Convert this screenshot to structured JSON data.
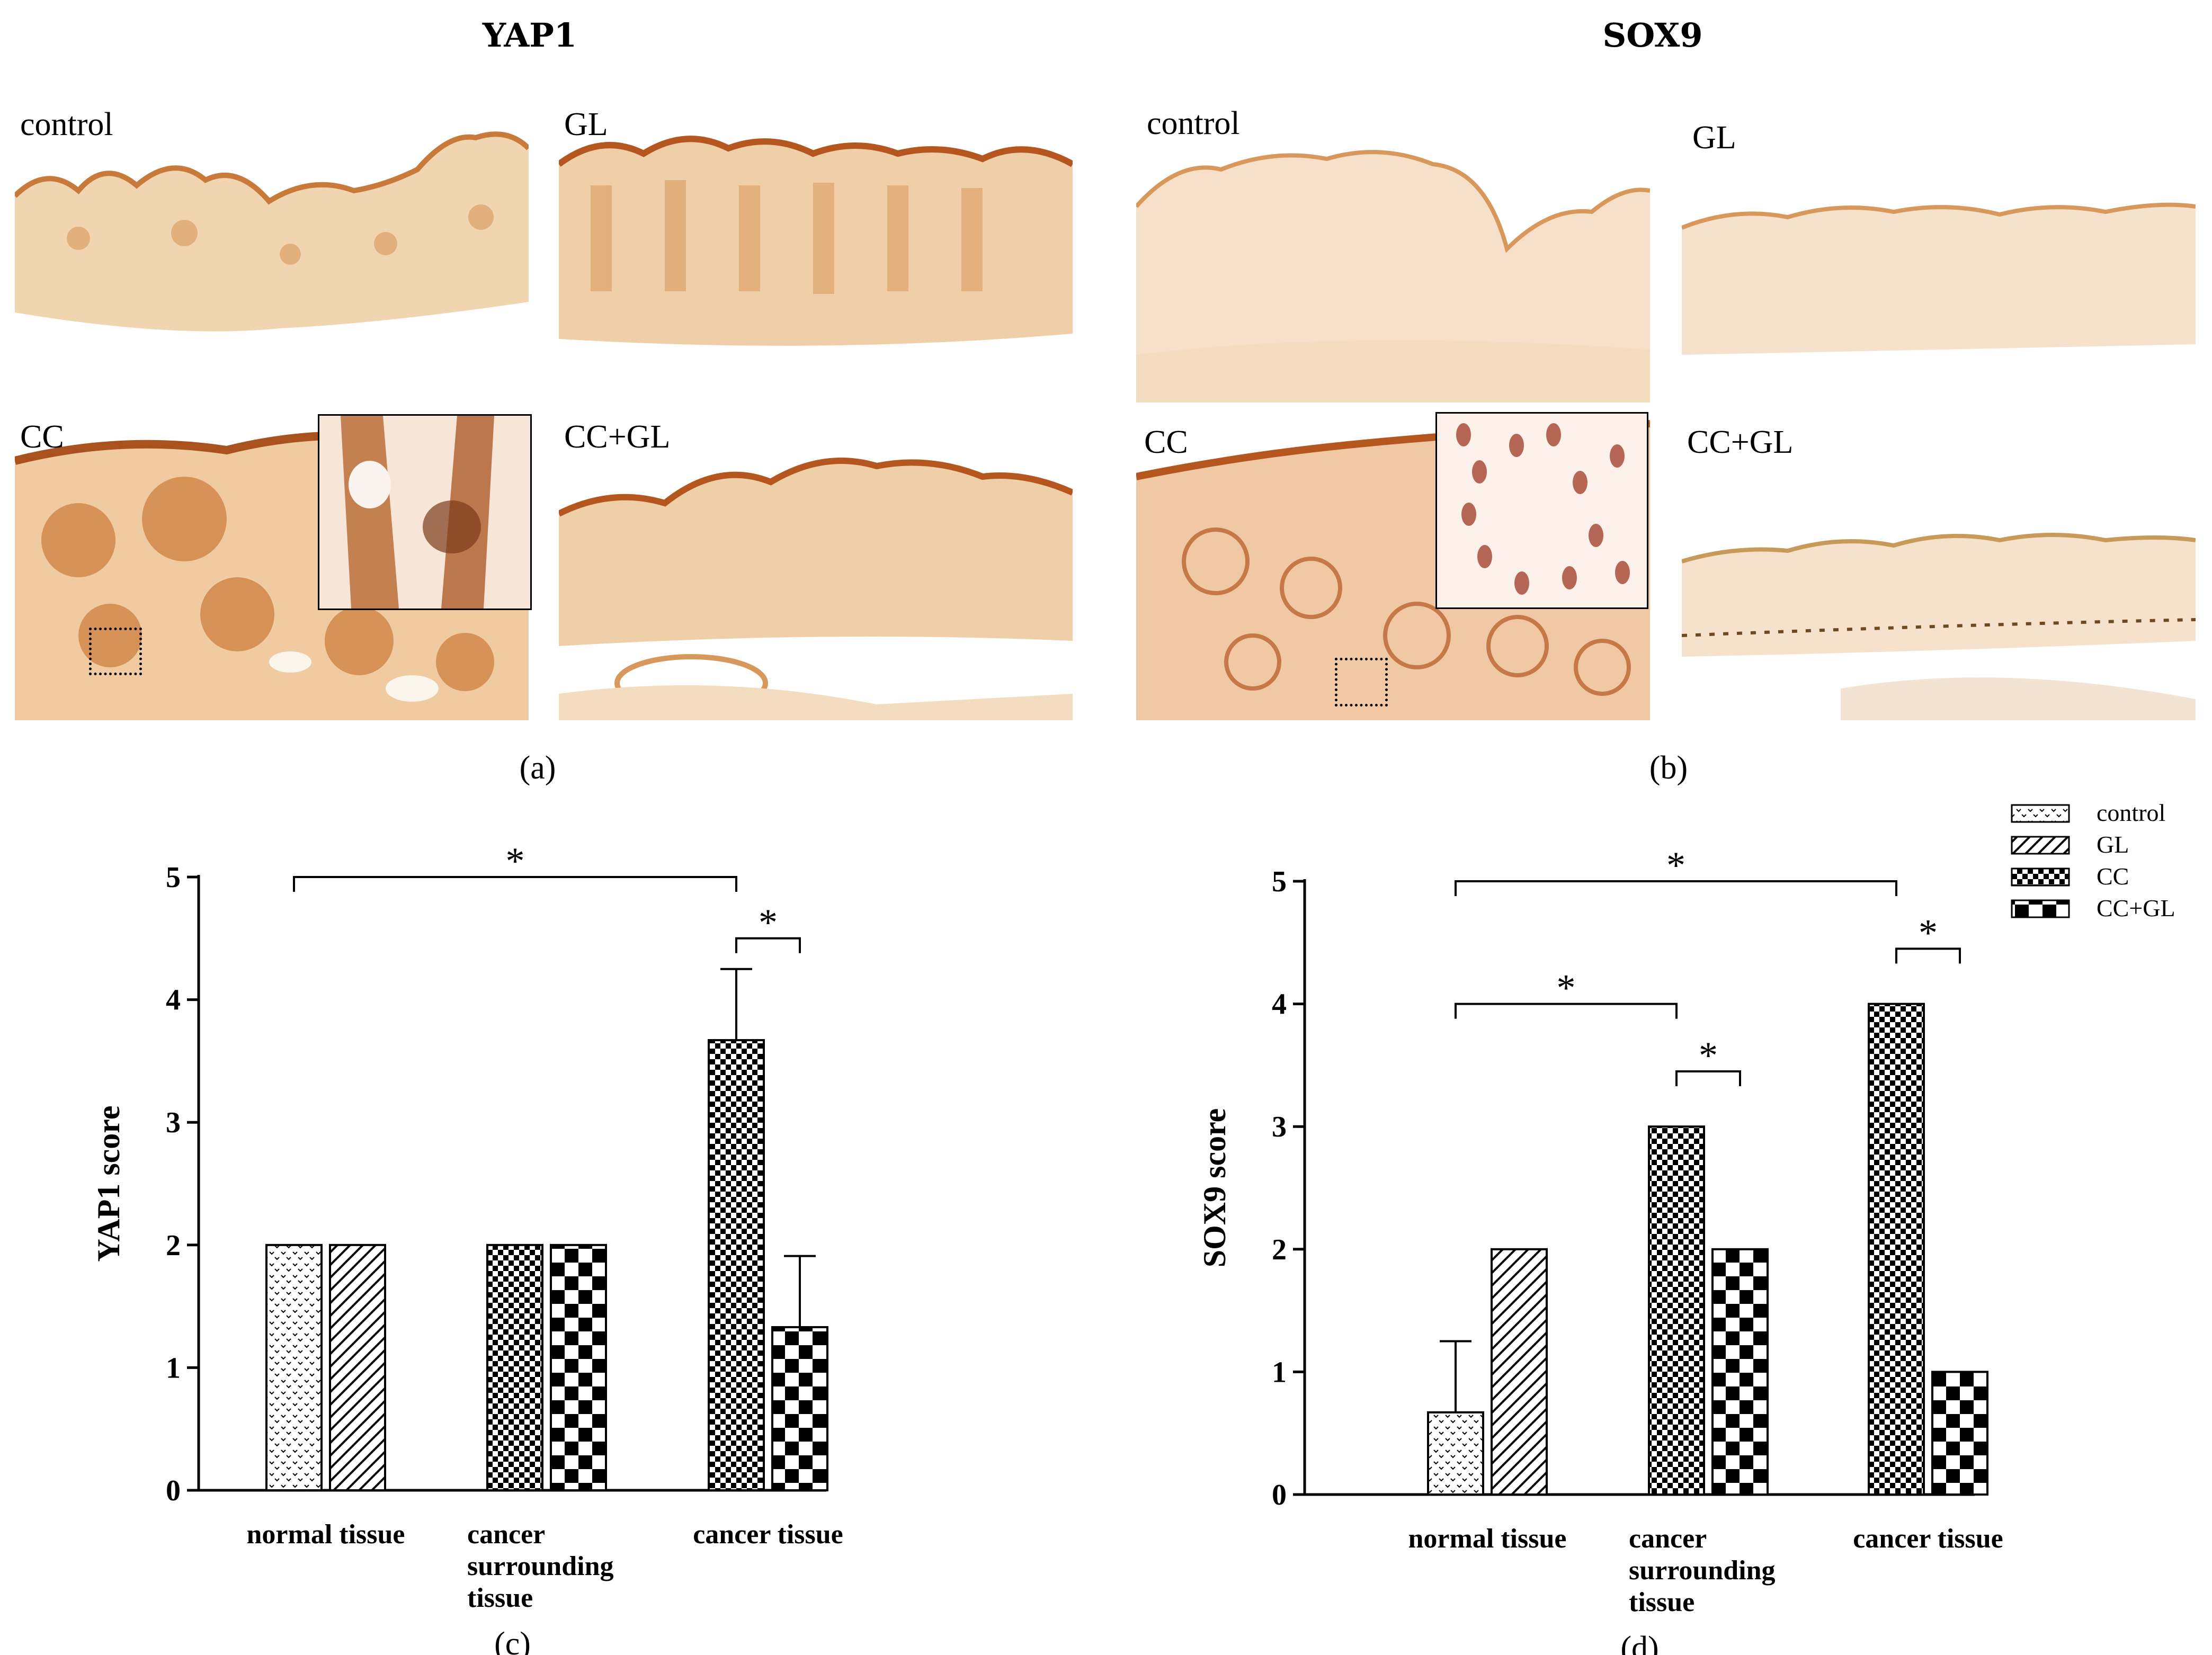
{
  "panels": [
    {
      "id": "a",
      "title": "YAP1",
      "label": "(a)",
      "images": [
        "control",
        "GL",
        "CC",
        "CC+GL"
      ]
    },
    {
      "id": "b",
      "title": "SOX9",
      "label": "(b)",
      "images": [
        "control",
        "GL",
        "CC",
        "CC+GL"
      ]
    }
  ],
  "colors": {
    "stain_dark": "#b5561f",
    "stain_mid": "#d9985b",
    "stain_light": "#f3dcc0",
    "background": "#ffffff",
    "bars": "#000000"
  },
  "chart_data": [
    {
      "type": "bar",
      "panel_label": "(c)",
      "ylabel": "YAP1 score",
      "xlabel": "",
      "ylim": [
        0,
        5
      ],
      "yticks": [
        "0",
        "1",
        "2",
        "3",
        "4",
        "5"
      ],
      "categories": [
        "normal tissue",
        "cancer surrounding tissue",
        "cancer tissue"
      ],
      "category_lines": [
        [
          "normal tissue"
        ],
        [
          "cancer",
          "surrounding",
          "tissue"
        ],
        [
          "cancer tissue"
        ]
      ],
      "bars": [
        {
          "category": 0,
          "group": "control",
          "value": 2,
          "error": 0
        },
        {
          "category": 0,
          "group": "GL",
          "value": 2,
          "error": 0
        },
        {
          "category": 1,
          "group": "CC",
          "value": 2,
          "error": 0
        },
        {
          "category": 1,
          "group": "CC+GL",
          "value": 2,
          "error": 0
        },
        {
          "category": 2,
          "group": "CC",
          "value": 3.67,
          "error": 0.58
        },
        {
          "category": 2,
          "group": "CC+GL",
          "value": 1.33,
          "error": 0.58
        }
      ],
      "significance": [
        {
          "from_bar": 0,
          "to_bar": 4,
          "y": 5.0,
          "label": "*"
        },
        {
          "from_bar": 4,
          "to_bar": 5,
          "y": 4.5,
          "label": "*"
        }
      ]
    },
    {
      "type": "bar",
      "panel_label": "(d)",
      "ylabel": "SOX9 score",
      "xlabel": "",
      "ylim": [
        0,
        5
      ],
      "yticks": [
        "0",
        "1",
        "2",
        "3",
        "4",
        "5"
      ],
      "categories": [
        "normal tissue",
        "cancer surrounding tissue",
        "cancer tissue"
      ],
      "category_lines": [
        [
          "normal tissue"
        ],
        [
          "cancer",
          "surrounding",
          "tissue"
        ],
        [
          "cancer tissue"
        ]
      ],
      "bars": [
        {
          "category": 0,
          "group": "control",
          "value": 0.67,
          "error": 0.58
        },
        {
          "category": 0,
          "group": "GL",
          "value": 2,
          "error": 0
        },
        {
          "category": 1,
          "group": "CC",
          "value": 3,
          "error": 0
        },
        {
          "category": 1,
          "group": "CC+GL",
          "value": 2,
          "error": 0
        },
        {
          "category": 2,
          "group": "CC",
          "value": 4,
          "error": 0
        },
        {
          "category": 2,
          "group": "CC+GL",
          "value": 1,
          "error": 0
        }
      ],
      "significance": [
        {
          "from_bar": 0,
          "to_bar": 4,
          "y": 5.0,
          "label": "*"
        },
        {
          "from_bar": 0,
          "to_bar": 2,
          "y": 4.0,
          "label": "*"
        },
        {
          "from_bar": 2,
          "to_bar": 3,
          "y": 3.45,
          "label": "*"
        },
        {
          "from_bar": 4,
          "to_bar": 5,
          "y": 4.45,
          "label": "*"
        }
      ],
      "legend": {
        "position": "top-right",
        "entries": [
          "control",
          "GL",
          "CC",
          "CC+GL"
        ]
      }
    }
  ]
}
